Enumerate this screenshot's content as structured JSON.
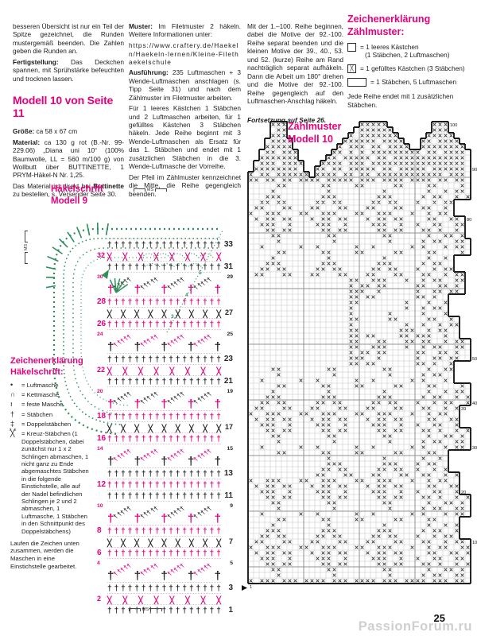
{
  "page": {
    "number": "25",
    "watermark": "PassionForum.ru"
  },
  "columns": {
    "col1": {
      "p1": "besseren Übersicht ist nur ein Teil der Spitze gezeichnet, die Runden mustergemäß beenden. Die Zahlen geben die Runden an.",
      "p2_label": "Fertigstellung:",
      "p2": "Das Deckchen spannen, mit Sprühstärke befeuchten und trocknen lassen.",
      "heading": "Modell 10 von Seite 11",
      "groesse_label": "Größe:",
      "groesse": "ca 58 x 67 cm",
      "material_label": "Material:",
      "material": "ca 130 g rot (B.-Nr. 99-229.06) „Diana uni 10“ (100% Baumwolle, LL = 560 m/100 g) von Wollbutt über BUTTINETTE, 1 PRYM-Häkel-N Nr. 1,25.",
      "order1": "Das Material ist direkt bei ",
      "order_bold": "Buttinette",
      "order2": " zu bestellen, s. Versender Seite 30."
    },
    "col2": {
      "muster_label": "Muster:",
      "muster": "Im Filetmuster 2 häkeln. Weitere Informationen unter:",
      "url": "https://www.craftery.de/Haekeln/Haekeln-lernen/Kleine-Filethaekelschule",
      "ausfuehrung_label": "Ausführung:",
      "ausfuehrung": "235 Luftmaschen + 3 Wende-Luftmaschen anschlagen (s. Tipp Seite 31) und nach dem Zählmuster im Filetmuster arbeiten.",
      "p2": "Für 1 leeres Kästchen 1 Stäbchen und 2 Luftmaschen arbeiten, für 1 gefülltes Kästchen 3 Stäbchen häkeln. Jede Reihe beginnt mit 3 Wende-Luftmaschen als Ersatz für das 1. Stäbchen und endet mit 1 zusätzlichen Stäbchen in die 3. Wende-Luftmasche der Vorreihe.",
      "p3": "Der Pfeil im Zählmuster kennzeichnet die Mitte, die Reihe gegengleich beenden."
    },
    "col3": {
      "p1": "Mit der 1.–100. Reihe beginnen, dabei die Motive der 92.-100. Reihe separat beenden und die kleinen Motive der 39., 40., 53. und 52. (kurze) Reihe am Rand nachträglich separat aufhäkeln. Dann die Arbeit um 180° drehen und die Motive der 92.-100. Reihe gegengleich auf den Luftmaschen-Anschlag häkeln.",
      "continuation": "Fortsetzung auf Seite 26."
    }
  },
  "legend_zaehlmuster": {
    "title1": "Zeichenerklärung",
    "title2": "Zählmuster:",
    "items": [
      {
        "box": "",
        "wide": false,
        "text1": "= 1 leeres Kästchen",
        "text2": "(1 Stäbchen, 2 Luftmaschen)"
      },
      {
        "box": "╳",
        "wide": false,
        "text1": "= 1 gefülltes Kästchen (3 Stäbchen)",
        "text2": ""
      },
      {
        "box": "",
        "wide": true,
        "text1": "= 1 Stäbchen, 5 Luftmaschen",
        "text2": ""
      }
    ],
    "note": "Jede Reihe endet mit 1 zusätzlichen Stäbchen."
  },
  "legend_haekelschrift": {
    "title1": "Zeichenerklärung",
    "title2": "Häkelschrift:",
    "items": [
      {
        "symbol": "•",
        "sup": "",
        "label": "= Luftmasche"
      },
      {
        "symbol": "∩",
        "sup": "",
        "label": "= Kettmasche"
      },
      {
        "symbol": "ı",
        "sup": "",
        "label": "= feste Masche"
      },
      {
        "symbol": "†",
        "sup": "",
        "label": "= Stäbchen"
      },
      {
        "symbol": "‡",
        "sup": "",
        "label": "= Doppelstäbchen"
      },
      {
        "symbol": "╳",
        "sup": "x x",
        "label": "= Kreuz-Stäbchen (1 Doppelstäbchen, dabei zunächst nur 1 x 2 Schlingen abmaschen, 1 nicht ganz zu Ende abgemaschtes Stäbchen in die folgende Einstichstelle, alle auf der Nadel befindlichen Schlingen je 2 und 2 abmaschen, 1 Luftmasche, 1 Stäbchen in den Schnittpunkt des Doppelstäbchens)"
      }
    ],
    "footer": "Laufen die Zeichen unten zusammen, werden die Maschen in eine Einstichstelle gearbeitet."
  },
  "haekelschrift": {
    "title1": "Häkelschrift",
    "title2": "Modell 9",
    "ms_label": "MS",
    "green_numbers": [
      "3",
      "4",
      "5"
    ],
    "rows": [
      {
        "type": "stb",
        "color": "black",
        "num": "33",
        "side": "right",
        "count": 17
      },
      {
        "type": "cross",
        "color": "magenta",
        "num": "32",
        "side": "left",
        "count": 8
      },
      {
        "type": "stb",
        "color": "black",
        "num": "31",
        "side": "right",
        "count": 17
      },
      {
        "type": "fan",
        "color": "black",
        "sep_color": "magenta",
        "num_left": "30",
        "num_right": "29",
        "fans": 4
      },
      {
        "type": "stb",
        "color": "magenta",
        "num": "28",
        "side": "left",
        "count": 17
      },
      {
        "type": "cross",
        "color": "black",
        "num": "27",
        "side": "right",
        "count": 9
      },
      {
        "type": "stb",
        "color": "magenta",
        "num": "26",
        "side": "left",
        "count": 17
      },
      {
        "type": "fan",
        "color": "magenta",
        "sep_color": "black",
        "num_left": "24",
        "num_right": "25",
        "fans": 4
      },
      {
        "type": "stb",
        "color": "black",
        "num": "23",
        "side": "right",
        "count": 17
      },
      {
        "type": "cross",
        "color": "magenta",
        "num": "22",
        "side": "left",
        "count": 8
      },
      {
        "type": "stb",
        "color": "black",
        "num": "21",
        "side": "right",
        "count": 17
      },
      {
        "type": "fan",
        "color": "black",
        "sep_color": "magenta",
        "num_left": "20",
        "num_right": "19",
        "fans": 4
      },
      {
        "type": "stb",
        "color": "magenta",
        "num": "18",
        "side": "left",
        "count": 17
      },
      {
        "type": "cross",
        "color": "black",
        "num": "17",
        "side": "right",
        "count": 9
      },
      {
        "type": "stb",
        "color": "magenta",
        "num": "16",
        "side": "left",
        "count": 17
      },
      {
        "type": "fan",
        "color": "magenta",
        "sep_color": "black",
        "num_left": "14",
        "num_right": "15",
        "fans": 4
      },
      {
        "type": "stb",
        "color": "black",
        "num": "13",
        "side": "right",
        "count": 17
      },
      {
        "type": "stb",
        "color": "magenta",
        "num": "12",
        "side": "left",
        "count": 17
      },
      {
        "type": "stb",
        "color": "black",
        "num": "11",
        "side": "right",
        "count": 17
      },
      {
        "type": "fan",
        "color": "black",
        "sep_color": "magenta",
        "num_left": "10",
        "num_right": "9",
        "fans": 4
      },
      {
        "type": "stb",
        "color": "magenta",
        "num": "8",
        "side": "left",
        "count": 17
      },
      {
        "type": "cross",
        "color": "black",
        "num": "7",
        "side": "right",
        "count": 9
      },
      {
        "type": "stb",
        "color": "magenta",
        "num": "6",
        "side": "left",
        "count": 17
      },
      {
        "type": "fan",
        "color": "magenta",
        "sep_color": "black",
        "num_left": "4",
        "num_right": "5",
        "fans": 4
      },
      {
        "type": "stb",
        "color": "black",
        "num": "3",
        "side": "right",
        "count": 17
      },
      {
        "type": "cross",
        "color": "magenta",
        "num": "2",
        "side": "left",
        "count": 8
      },
      {
        "type": "stb",
        "color": "black",
        "num": "1",
        "side": "right",
        "count": 17
      }
    ]
  },
  "chart_data": {
    "type": "filet_grid",
    "title1": "Zählmuster",
    "title2": "Modell 10",
    "cols": 40,
    "cell_legend": {
      "X": "gefülltes Kästchen (3 Stäbchen)",
      ".": "leeres Kästchen (1 Stäbchen, 2 Luftmaschen)"
    },
    "row_labels": [
      [
        "100",
        0
      ],
      [
        "90",
        8
      ],
      [
        "80",
        17
      ],
      [
        "50",
        42
      ],
      [
        "40",
        50
      ],
      [
        "39",
        51
      ],
      [
        "30",
        58
      ],
      [
        "20",
        66
      ],
      [
        "10",
        75
      ],
      [
        "1",
        83
      ]
    ],
    "top_spans": {
      "0": [
        [
          4,
          6
        ],
        [
          20,
          24
        ],
        [
          33,
          35
        ]
      ],
      "1": [
        [
          4,
          6
        ],
        [
          19,
          25
        ],
        [
          33,
          35
        ]
      ],
      "2": [
        [
          4,
          6
        ],
        [
          18,
          26
        ],
        [
          32,
          36
        ]
      ],
      "3": [
        [
          3,
          7
        ],
        [
          17,
          27
        ],
        [
          31,
          37
        ]
      ],
      "4": [
        [
          3,
          7
        ],
        [
          16,
          28
        ],
        [
          31,
          38
        ]
      ],
      "5": [
        [
          2,
          8
        ],
        [
          15,
          29
        ],
        [
          30,
          39
        ]
      ],
      "6": [
        [
          2,
          8
        ],
        [
          14,
          30
        ],
        [
          30,
          39
        ]
      ],
      "7": [
        [
          1,
          9
        ],
        [
          13,
          39
        ]
      ],
      "8": [
        [
          1,
          9
        ],
        [
          12,
          39
        ]
      ],
      "9": [
        [
          0,
          10
        ],
        [
          12,
          39
        ]
      ],
      "10": [
        [
          0,
          39
        ]
      ]
    },
    "right_edge": [
      39,
      39,
      39,
      39,
      39,
      39,
      39,
      39,
      39,
      39,
      39,
      39,
      39,
      39,
      36,
      36,
      36,
      38,
      38,
      38,
      38,
      39,
      39,
      39,
      36,
      36,
      36,
      38,
      38,
      38,
      38,
      35,
      35,
      35,
      35,
      37,
      37,
      37,
      37,
      39,
      39,
      39,
      39,
      36,
      36,
      36,
      36,
      39,
      39,
      39,
      39,
      37,
      37,
      37,
      37,
      39,
      39,
      39,
      39,
      35,
      35,
      35,
      35,
      37,
      37,
      37,
      37,
      39,
      39,
      39,
      39,
      37,
      37,
      37,
      37,
      39,
      39,
      39,
      39,
      39,
      39,
      39,
      39
    ],
    "rows": [
      "XXXXXXXXXXXXXXXXXXXXXXXXXXXXXXXXXXXXXXXX",
      "XXXX.XXXXXXXXX.XXXX.XXXXXXXXXX.XXXXXXXX",
      "XXXXXXXXXXXXXXXXX.X.XXXXXXXXXXXXXXXXXXX",
      "XXX.XXXXXXXXX.XXXXXXXXX.XXXXXXXXX.XXXXX",
      "XXXXXXXXXXXXXX.XX.XXX.XX.XXXXXXXXXXXXXX",
      "XX.XX.XXXXXXXXXXX.X.X.XXXXXXXXX.XX.XXXX",
      "XXXXXXXXXXXXX.XX.XXXXX.XX.XXXXXXXXXXXXX",
      "X.XXX.XXXXXXXXXXX.XXX.XXXXXXXXXXXXXXXXX",
      "XXXXXXXXX.XXXX.XX.XXXXX.XX.XXXXX.XXXXXX",
      "X.XX.XXXXXXXXXXX.XX.XX.XXXXXXXXXXXX.XXX",
      "XX.XX.XX.XXXX.XXXXX.XXX.XXXX.XXXX.XX.XX",
      ".....XX......XX....XX.....XX....XX....X.",
      "....X.........X.........X.......X..X.XX.",
      "...XXX.......XXX.......XXX.....X.XX..X.X",
      "..XX.XX.....XX.XX.....XX.XX...X..X.XX..X",
      ".XX...XX...XX...XX...XX...XX...XX..X.XX.",
      "X..XXX...XX..XXX...XX..XXX...X..X.XX..XX",
      ".X.XX.XX...X.XX.XX...X.XX.XX....XX..XX.X",
      "..XXX..X....XXX..X....XXX..X..X..XX..XX.",
      "...XX.XX.....XX.XX.....XX.XX...XX.X..X.X",
      "....XX........XX........XX......X..XX.X.",
      ".....X.........X.........X.....X.XX..XX.",
      "..X......X..X......X..X......X.X...X.XX.",
      ".....XX......XX....XX.....XX....XX....X.",
      "....X.........X.........X.......X..X.XX.",
      "...XXX.......XXX.......XXX.....X.XX..X.X",
      "..XX.XX.....XX.XX.....XX.XX...X..X.XX..X",
      ".XX...XX...XX...XX...XX...XX...XX..X.XX.",
      "..................XX..XXX...X..X.XX..XX",
      "..................X.XX.XX.....XX..XX.X.",
      "..................XXX..X......X..XX.XX.",
      "..................XX.XX.......XX.X..X.X",
      "..................XX........X...X..XX.X",
      "..................X.........X..X.XX..X.",
      "..................X......X.....X...X.XX",
      "..................XX.....XX.....XX..X..",
      "..................X.........X..X..X.XX.",
      "..................XX.......XXX..X.XX..X",
      "..................XX.XX....XX.XXX..X..X",
      "..................XX...XX...XX.XX..X.XX",
      "..................XX..XXX...X..X.XX..XX",
      "..................X.XX.XX.....XX..XX.X.",
      "..................XXX..X......X..XX.XX.",
      "..................XX.XX.......XX.X..X.X",
      "....XX........XX........XX......X..XX.X.",
      ".....X.........X.........X.....X.XX..XX.",
      "..X......X..X......X..X......X.X...X.XX.",
      ".....XX......XX....XX.....XX....XX....X.",
      "....X.........X.........X.......X..X.XX.",
      "...XXX.......XXX.......XXX.....X.XX..X.X",
      "..XX.XX.....XX.XX.....XX.XX...X..X.XX..X",
      ".XX...XX...XX...XX...XX...XX...XX..X.XX.",
      "X..XXX...XX..XXX...XX..XXX...X..X.XX..XX",
      ".X.XX.XX...X.XX.XX...X.XX.XX....XX..XX.X",
      "..XXX..X....XXX..X....XXX..X..X..XX..XX.",
      "...XX.XX.....XX.XX.....XX.XX...XX.X..X.X",
      "....XX........XX........XX......X..XX.X.",
      ".....X.........X.........X.....X.XX..XX.",
      "..X......X..X......X..X......X.X...X.XX.",
      ".....XX......XX....XX.....XX....XX....X.",
      "..............X.........X......X..X.XX..",
      "..............XXX.......XXX...X.XX..X.X.",
      ".............XX.XX.....XX.XX..X..X.XX..X",
      "............XX...XX...XX...XX..XX..X.XX.",
      "X..XXX...XX..XXX...XX..XXX...X..X.XX..XX",
      ".X.XX.XX...X.XX.XX...X.XX.XX....XX..XX.X",
      "..XXX..X....XXX..X....XXX..X..X..XX..XX.",
      "...XX.XX.....XX.XX.....XX.XX...XX.X..X.X",
      "....XX........XX........XX......X..XX.X.",
      ".....X.........X.........X.....X.XX..XX.",
      "..X......X..X......X..X......X.X...X.XX.",
      ".....XX......XX....XX.....XX....XX....X.",
      "....X.........X.........X.......X..X.XX.",
      "...XXX.......XXX.......XXX.....X.XX..X.X",
      "..XX.XX.....XX.XX.....XX.XX...X..X.XX..X",
      ".XX...XX...XX...XX...XX...XX...XX..X.XX.",
      "X..XXX...XX..XXX...XX..XXX...X..X.XX..XX",
      ".X.XX.XX...X.XX.XX...X.XX.XX....XX..XX.X",
      "..XXX..X....XXX..X....XXX..X..X..XX..XX.",
      "...XX.XX.....XX.XX.....XX.XX...XX.X..X.X",
      "....XX........XX........XX......X..XX.X.",
      ".....X.........X.........X.....X.XX..XX.",
      "X.XXX.XXX.XXXX.XXX.XXXX.XXX.XXXX.XXX.XX",
      "XXX.XX.XXXXX.XX.XXXXX.XX.XXXXX.XX.XXXXX"
    ]
  }
}
